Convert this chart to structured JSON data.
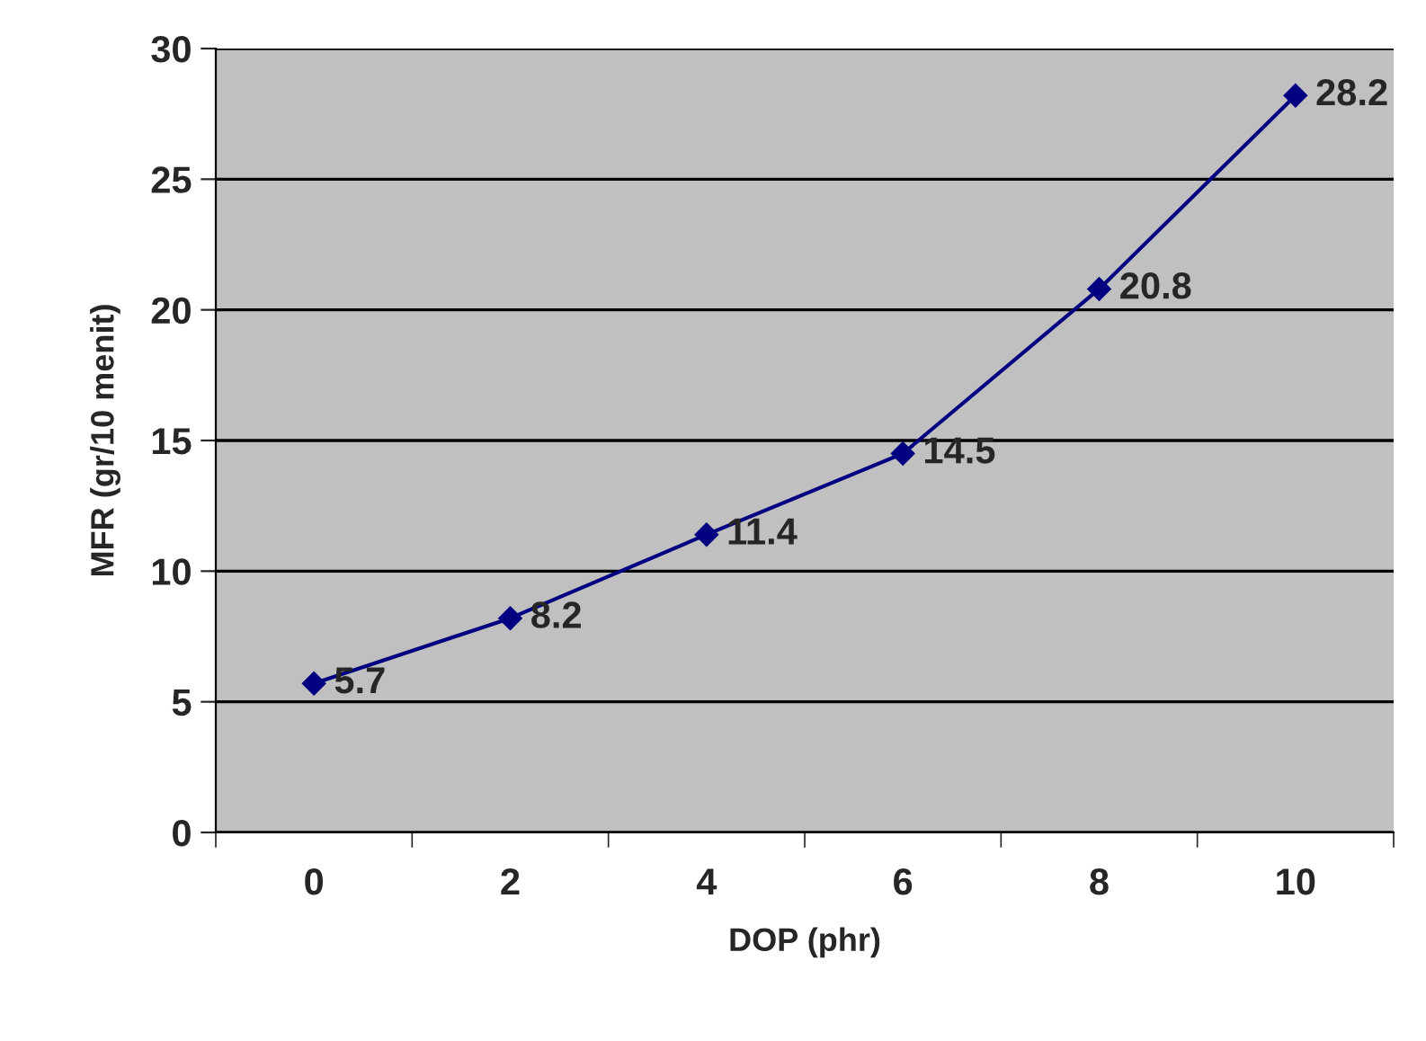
{
  "chart_data": {
    "type": "line",
    "xlabel": "DOP (phr)",
    "ylabel": "MFR (gr/10 menit)",
    "categories": [
      "0",
      "2",
      "4",
      "6",
      "8",
      "10"
    ],
    "series": [
      {
        "color": "#000080",
        "values": [
          5.7,
          8.2,
          11.4,
          14.5,
          20.8,
          28.2
        ]
      }
    ],
    "ylim": [
      0,
      30
    ],
    "yticks": [
      0,
      5,
      10,
      15,
      20,
      25,
      30
    ],
    "grid": "y",
    "marker": "diamond",
    "line_style": "solid",
    "data_labels": true,
    "legend": false
  }
}
